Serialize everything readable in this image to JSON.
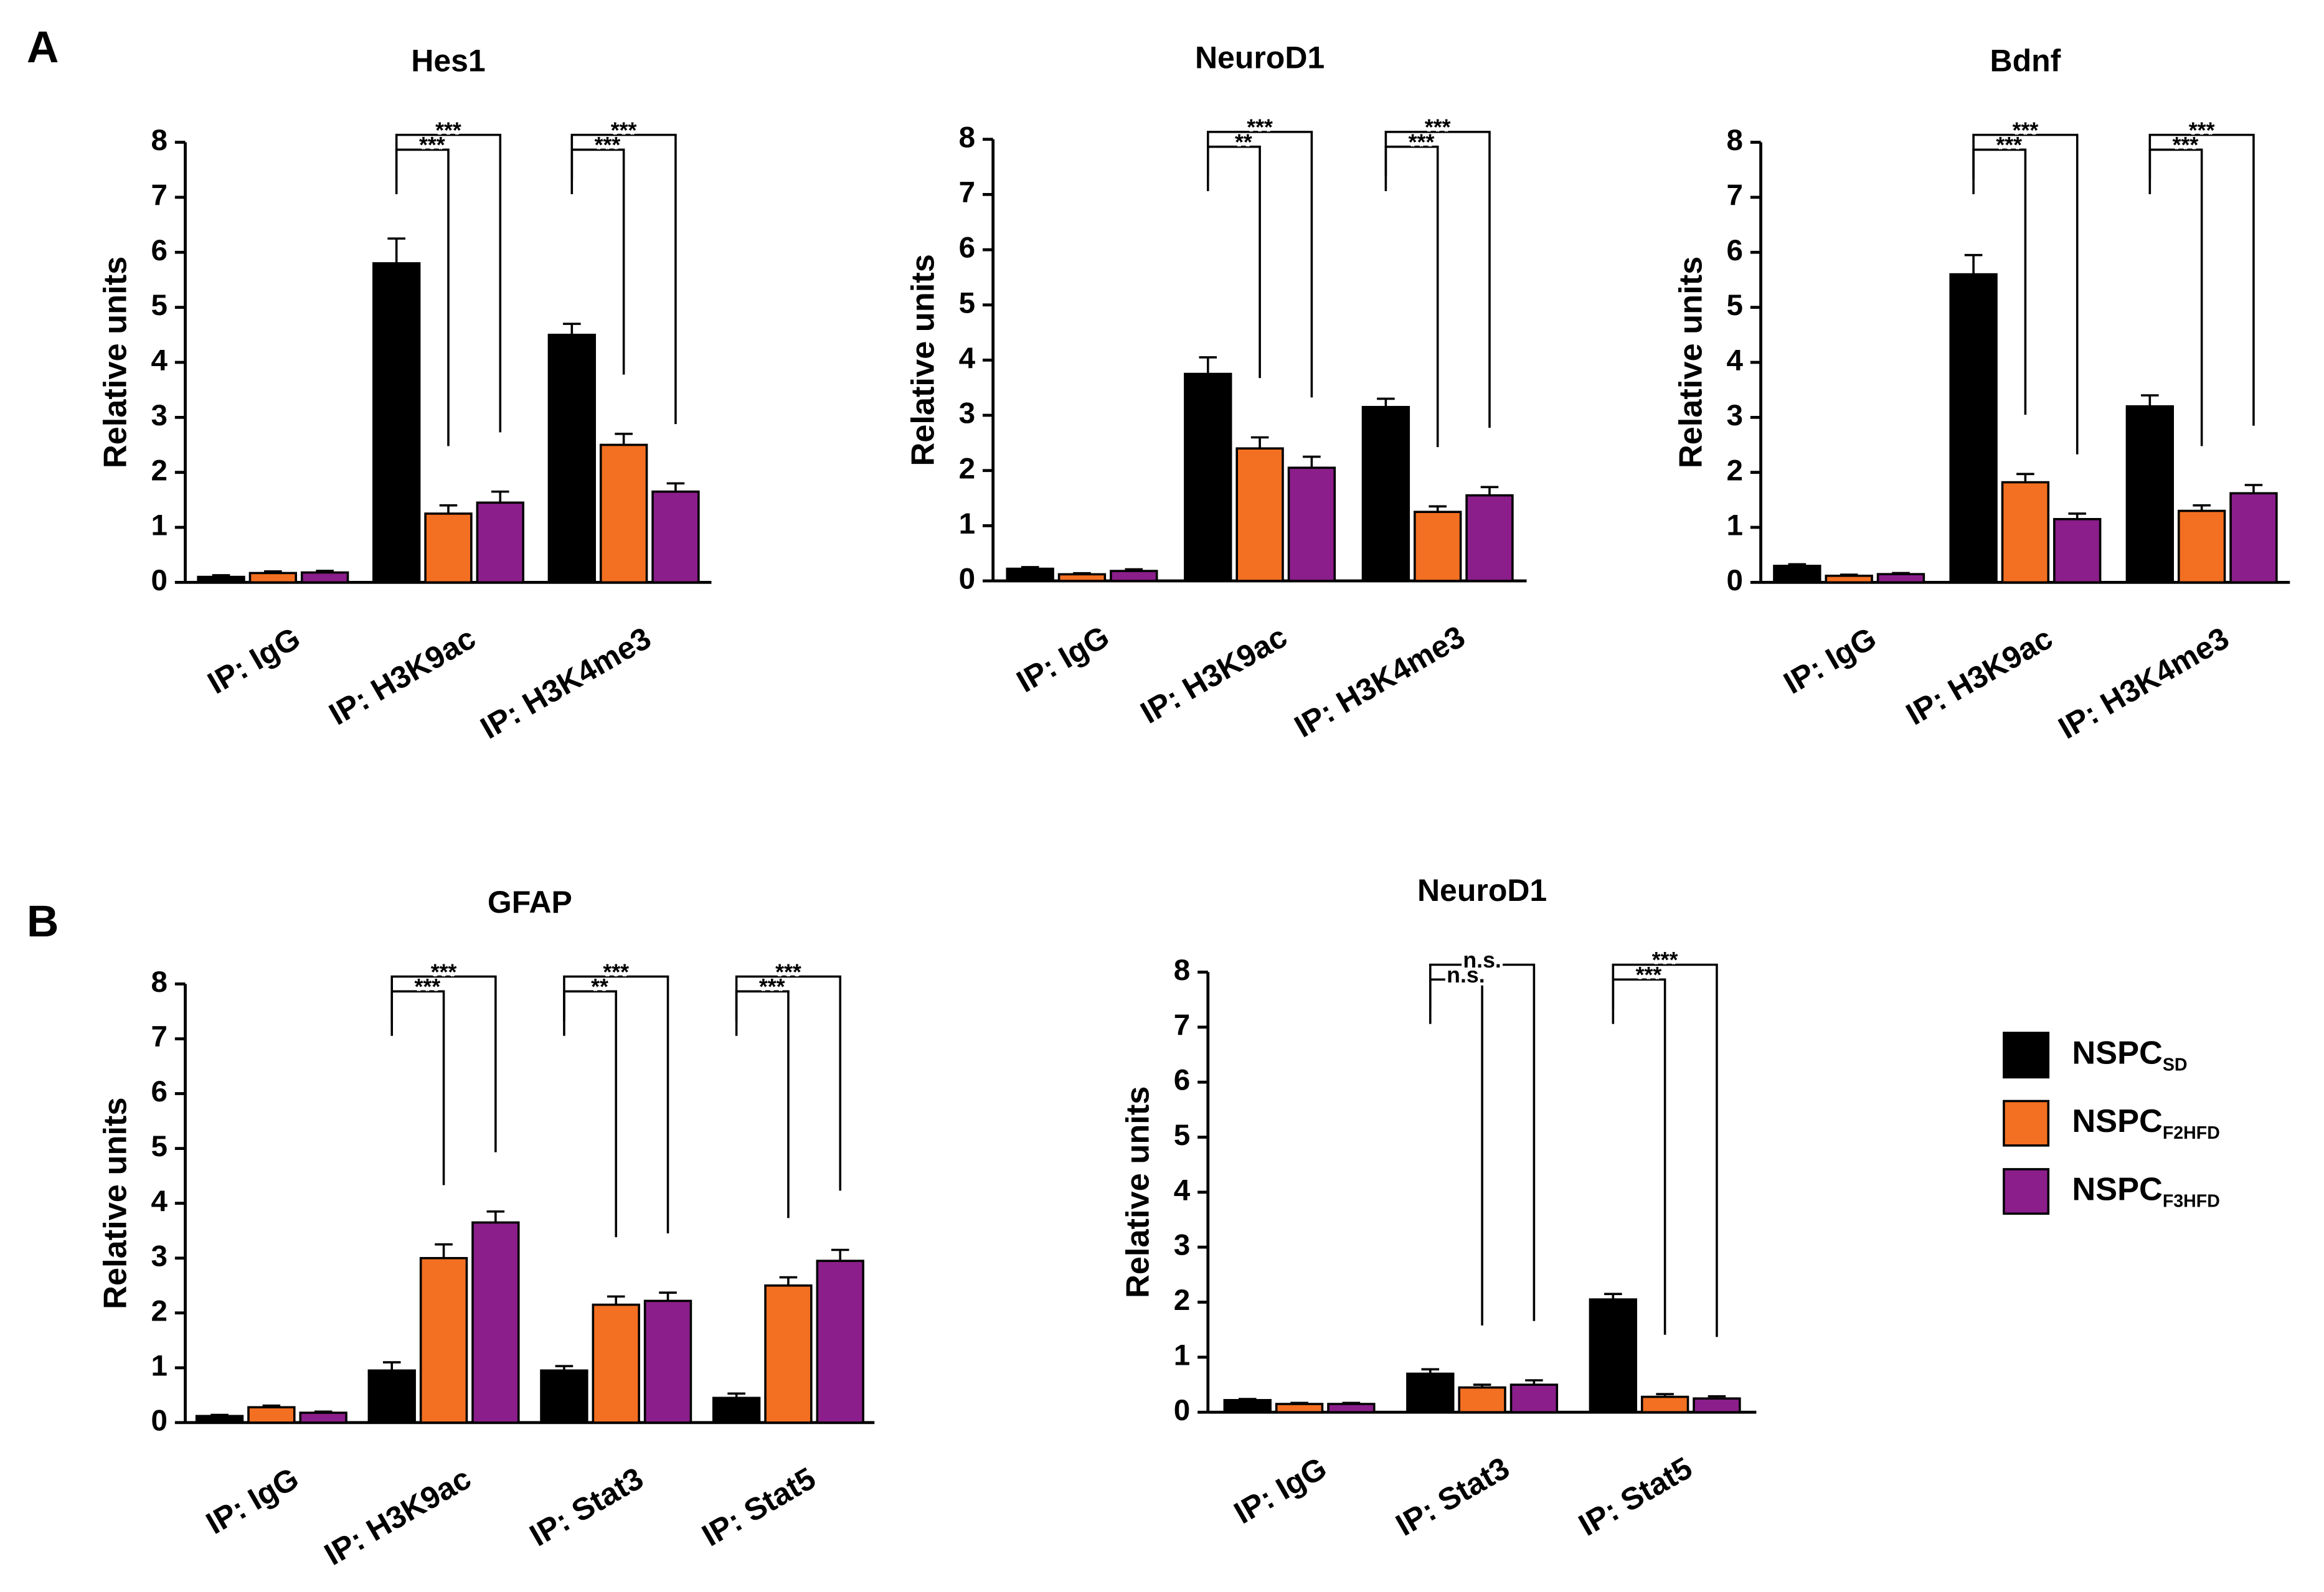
{
  "panel_labels": [
    "A",
    "B"
  ],
  "chart_data": [
    {
      "type": "bar",
      "title": "Hes1",
      "ylabel": "Relative units",
      "categories": [
        "IP: IgG",
        "IP: H3K9ac",
        "IP: H3K4me3"
      ],
      "ylim": [
        0,
        8
      ],
      "yticks": [
        0,
        1,
        2,
        3,
        4,
        5,
        6,
        7,
        8
      ],
      "series": [
        {
          "name": "NSPC",
          "subscript": "SD",
          "color": "#000000",
          "values": [
            0.1,
            5.8,
            4.5
          ],
          "errors": [
            0.03,
            0.45,
            0.2
          ]
        },
        {
          "name": "NSPC",
          "subscript": "F2HFD",
          "color": "#f36f21",
          "values": [
            0.17,
            1.25,
            2.5
          ],
          "errors": [
            0.03,
            0.15,
            0.2
          ]
        },
        {
          "name": "NSPC",
          "subscript": "F3HFD",
          "color": "#8b1e8b",
          "values": [
            0.18,
            1.45,
            1.65
          ],
          "errors": [
            0.03,
            0.2,
            0.15
          ]
        }
      ],
      "annotations": [
        {
          "text": "***",
          "group": 1,
          "series": 1
        },
        {
          "text": "***",
          "group": 1,
          "series": 2
        },
        {
          "text": "***",
          "group": 2,
          "series": 1
        },
        {
          "text": "***",
          "group": 2,
          "series": 2
        }
      ]
    },
    {
      "type": "bar",
      "title": "NeuroD1",
      "ylabel": "Relative units",
      "categories": [
        "IP: IgG",
        "IP: H3K9ac",
        "IP: H3K4me3"
      ],
      "ylim": [
        0,
        8
      ],
      "yticks": [
        0,
        1,
        2,
        3,
        4,
        5,
        6,
        7,
        8
      ],
      "series": [
        {
          "name": "NSPC",
          "subscript": "SD",
          "color": "#000000",
          "values": [
            0.22,
            3.75,
            3.15
          ],
          "errors": [
            0.03,
            0.3,
            0.15
          ]
        },
        {
          "name": "NSPC",
          "subscript": "F2HFD",
          "color": "#f36f21",
          "values": [
            0.12,
            2.4,
            1.25
          ],
          "errors": [
            0.02,
            0.2,
            0.1
          ]
        },
        {
          "name": "NSPC",
          "subscript": "F3HFD",
          "color": "#8b1e8b",
          "values": [
            0.18,
            2.05,
            1.55
          ],
          "errors": [
            0.03,
            0.2,
            0.15
          ]
        }
      ],
      "annotations": [
        {
          "text": "**",
          "group": 1,
          "series": 1
        },
        {
          "text": "***",
          "group": 1,
          "series": 2
        },
        {
          "text": "***",
          "group": 2,
          "series": 1
        },
        {
          "text": "***",
          "group": 2,
          "series": 2
        }
      ]
    },
    {
      "type": "bar",
      "title": "Bdnf",
      "ylabel": "Relative units",
      "categories": [
        "IP: IgG",
        "IP: H3K9ac",
        "IP: H3K4me3"
      ],
      "ylim": [
        0,
        8
      ],
      "yticks": [
        0,
        1,
        2,
        3,
        4,
        5,
        6,
        7,
        8
      ],
      "series": [
        {
          "name": "NSPC",
          "subscript": "SD",
          "color": "#000000",
          "values": [
            0.3,
            5.6,
            3.2
          ],
          "errors": [
            0.03,
            0.35,
            0.2
          ]
        },
        {
          "name": "NSPC",
          "subscript": "F2HFD",
          "color": "#f36f21",
          "values": [
            0.12,
            1.82,
            1.3
          ],
          "errors": [
            0.02,
            0.15,
            0.1
          ]
        },
        {
          "name": "NSPC",
          "subscript": "F3HFD",
          "color": "#8b1e8b",
          "values": [
            0.15,
            1.15,
            1.62
          ],
          "errors": [
            0.02,
            0.1,
            0.15
          ]
        }
      ],
      "annotations": [
        {
          "text": "***",
          "group": 1,
          "series": 1
        },
        {
          "text": "***",
          "group": 1,
          "series": 2
        },
        {
          "text": "***",
          "group": 2,
          "series": 1
        },
        {
          "text": "***",
          "group": 2,
          "series": 2
        }
      ]
    },
    {
      "type": "bar",
      "title": "GFAP",
      "ylabel": "Relative units",
      "categories": [
        "IP: IgG",
        "IP: H3K9ac",
        "IP: Stat3",
        "IP: Stat5"
      ],
      "ylim": [
        0,
        8
      ],
      "yticks": [
        0,
        1,
        2,
        3,
        4,
        5,
        6,
        7,
        8
      ],
      "series": [
        {
          "name": "NSPC",
          "subscript": "SD",
          "color": "#000000",
          "values": [
            0.12,
            0.95,
            0.95,
            0.45
          ],
          "errors": [
            0.02,
            0.15,
            0.08,
            0.08
          ]
        },
        {
          "name": "NSPC",
          "subscript": "F2HFD",
          "color": "#f36f21",
          "values": [
            0.28,
            3.0,
            2.15,
            2.5
          ],
          "errors": [
            0.03,
            0.25,
            0.15,
            0.15
          ]
        },
        {
          "name": "NSPC",
          "subscript": "F3HFD",
          "color": "#8b1e8b",
          "values": [
            0.18,
            3.65,
            2.22,
            2.95
          ],
          "errors": [
            0.02,
            0.2,
            0.15,
            0.2
          ]
        }
      ],
      "annotations": [
        {
          "text": "***",
          "group": 1,
          "series": 1
        },
        {
          "text": "***",
          "group": 1,
          "series": 2
        },
        {
          "text": "**",
          "group": 2,
          "series": 1
        },
        {
          "text": "***",
          "group": 2,
          "series": 2
        },
        {
          "text": "***",
          "group": 3,
          "series": 1
        },
        {
          "text": "***",
          "group": 3,
          "series": 2
        }
      ]
    },
    {
      "type": "bar",
      "title": "NeuroD1",
      "ylabel": "Relative units",
      "categories": [
        "IP: IgG",
        "IP: Stat3",
        "IP: Stat5"
      ],
      "ylim": [
        0,
        8
      ],
      "yticks": [
        0,
        1,
        2,
        3,
        4,
        5,
        6,
        7,
        8
      ],
      "legend": "right",
      "series": [
        {
          "name": "NSPC",
          "subscript": "SD",
          "color": "#000000",
          "values": [
            0.22,
            0.7,
            2.05
          ],
          "errors": [
            0.02,
            0.08,
            0.1
          ]
        },
        {
          "name": "NSPC",
          "subscript": "F2HFD",
          "color": "#f36f21",
          "values": [
            0.15,
            0.45,
            0.28
          ],
          "errors": [
            0.02,
            0.05,
            0.05
          ]
        },
        {
          "name": "NSPC",
          "subscript": "F3HFD",
          "color": "#8b1e8b",
          "values": [
            0.15,
            0.5,
            0.25
          ],
          "errors": [
            0.02,
            0.08,
            0.04
          ]
        }
      ],
      "annotations": [
        {
          "text": "n.s.",
          "group": 1,
          "series": 1
        },
        {
          "text": "n.s.",
          "group": 1,
          "series": 2
        },
        {
          "text": "***",
          "group": 2,
          "series": 1
        },
        {
          "text": "***",
          "group": 2,
          "series": 2
        }
      ]
    }
  ]
}
